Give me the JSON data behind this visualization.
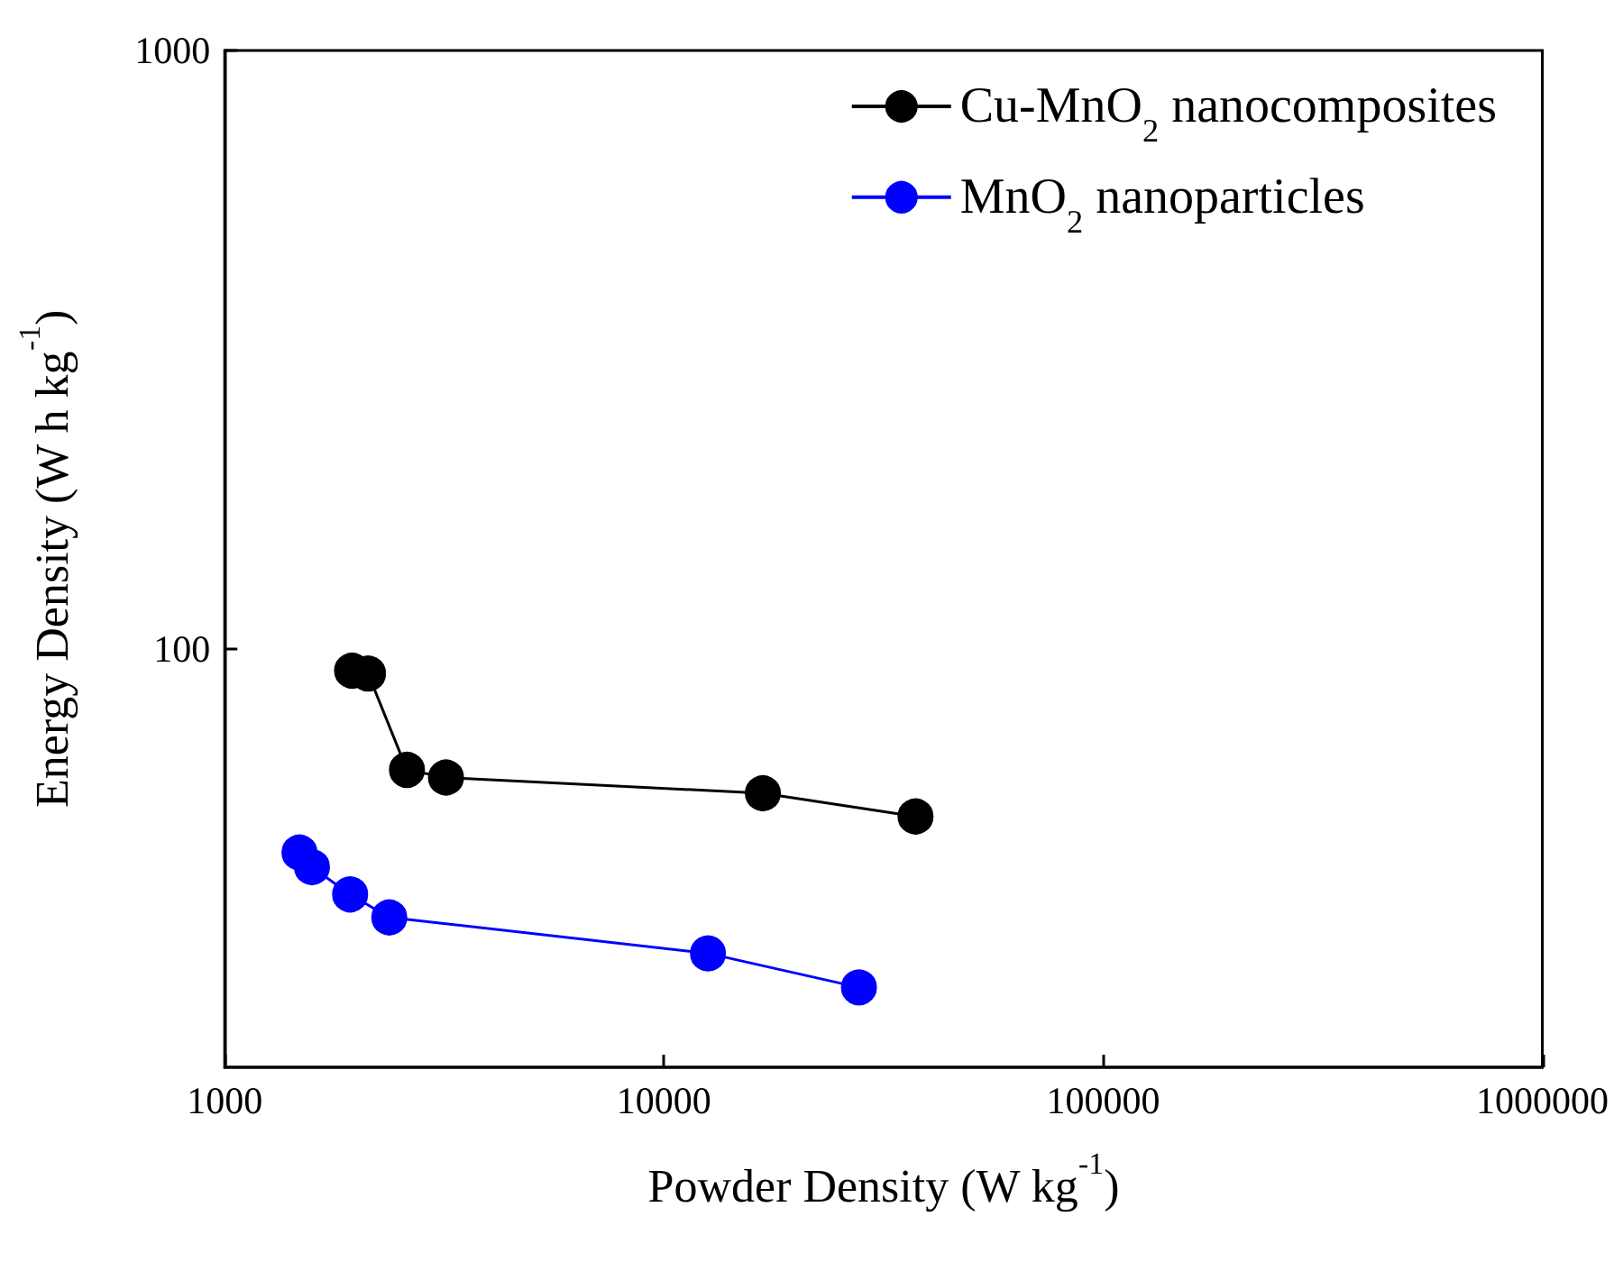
{
  "chart_data": {
    "type": "line",
    "xlabel": "Powder Density (W kg$^{-1}$)",
    "ylabel": "Energy Density (W h kg$^{-1}$)",
    "log": "xy",
    "xlim": [
      1000,
      1000000
    ],
    "xticks": [
      1000,
      10000,
      100000,
      1000000
    ],
    "ylim": [
      20,
      1000
    ],
    "yticks": [
      100,
      1000
    ],
    "grid": false,
    "legend": "top right",
    "marker": "circle",
    "line_style": "solid",
    "series": [
      {
        "name": "Cu-MnO$_{2}$ nanocomposites",
        "color": "#000000",
        "x": [
          1950,
          2120,
          2600,
          3190,
          16800,
          37400
        ],
        "values": [
          92,
          91,
          62.8,
          61,
          57.4,
          52.5
        ]
      },
      {
        "name": "MnO$_{2}$ nanoparticles",
        "color": "#0000ff",
        "x": [
          1480,
          1580,
          1930,
          2370,
          12600,
          27800
        ],
        "values": [
          45.7,
          43.2,
          38.9,
          35.6,
          31.0,
          27.2
        ]
      }
    ]
  }
}
